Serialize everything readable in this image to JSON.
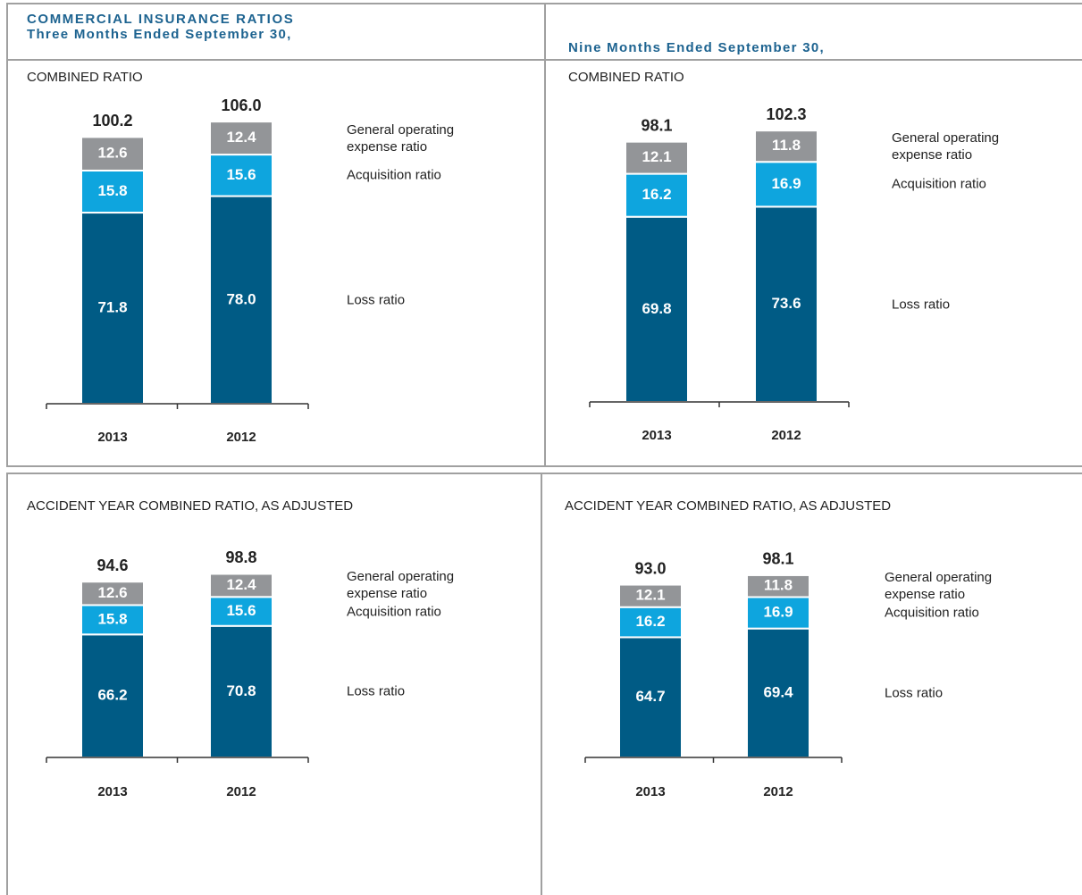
{
  "header": {
    "title": "COMMERCIAL INSURANCE RATIOS",
    "subtitles": [
      "Three Months Ended September 30,",
      "Nine Months Ended September 30,"
    ]
  },
  "chart_data": [
    {
      "type": "stacked_bar",
      "title": "COMBINED RATIO",
      "categories": [
        "2013",
        "2012"
      ],
      "series": [
        {
          "name": "Loss ratio",
          "color": "#005b85",
          "values": [
            71.8,
            78
          ],
          "value_labels": [
            "71.8",
            "78.0"
          ]
        },
        {
          "name": "Acquisition ratio",
          "color": "#0ea5de",
          "values": [
            15.8,
            15.6
          ]
        },
        {
          "name": "General operating expense ratio",
          "color": "#939598",
          "values": [
            12.6,
            12.4
          ]
        }
      ],
      "totals": [
        100.2,
        106
      ],
      "total_labels": [
        "100.2",
        "106.0"
      ]
    },
    {
      "type": "stacked_bar",
      "title": "COMBINED RATIO",
      "categories": [
        "2013",
        "2012"
      ],
      "series": [
        {
          "name": "Loss ratio",
          "color": "#005b85",
          "values": [
            69.8,
            73.6
          ]
        },
        {
          "name": "Acquisition ratio",
          "color": "#0ea5de",
          "values": [
            16.2,
            16.9
          ]
        },
        {
          "name": "General operating expense ratio",
          "color": "#939598",
          "values": [
            12.1,
            11.8
          ]
        }
      ],
      "totals": [
        98.1,
        102.3
      ]
    },
    {
      "type": "stacked_bar",
      "title": "ACCIDENT YEAR COMBINED RATIO, AS ADJUSTED",
      "categories": [
        "2013",
        "2012"
      ],
      "series": [
        {
          "name": "Loss ratio",
          "color": "#005b85",
          "values": [
            66.2,
            70.8
          ]
        },
        {
          "name": "Acquisition ratio",
          "color": "#0ea5de",
          "values": [
            15.8,
            15.6
          ]
        },
        {
          "name": "General operating expense ratio",
          "color": "#939598",
          "values": [
            12.6,
            12.4
          ]
        }
      ],
      "totals": [
        94.6,
        98.8
      ]
    },
    {
      "type": "stacked_bar",
      "title": "ACCIDENT YEAR COMBINED RATIO, AS ADJUSTED",
      "categories": [
        "2013",
        "2012"
      ],
      "series": [
        {
          "name": "Loss ratio",
          "color": "#005b85",
          "values": [
            64.7,
            69.4
          ]
        },
        {
          "name": "Acquisition ratio",
          "color": "#0ea5de",
          "values": [
            16.2,
            16.9
          ]
        },
        {
          "name": "General operating expense ratio",
          "color": "#939598",
          "values": [
            12.1,
            11.8
          ]
        }
      ],
      "totals": [
        93,
        98.1
      ],
      "total_labels": [
        "93.0",
        "98.1"
      ]
    }
  ]
}
